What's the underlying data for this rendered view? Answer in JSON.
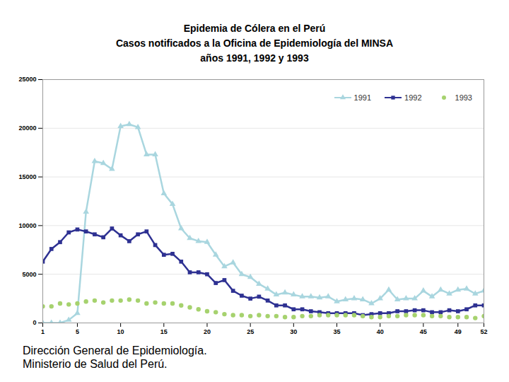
{
  "chart_data": {
    "type": "line",
    "title": [
      "Epidemia de Cólera en el Perú",
      "Casos notificados a la Oficina de Epidemiología del MINSA",
      "años 1991, 1992 y 1993"
    ],
    "caption": [
      "Dirección General de Epidemiología.",
      "Ministerio de Salud del Perú."
    ],
    "x": [
      1,
      2,
      3,
      4,
      5,
      6,
      7,
      8,
      9,
      10,
      11,
      12,
      13,
      14,
      15,
      16,
      17,
      18,
      19,
      20,
      21,
      22,
      23,
      24,
      25,
      26,
      27,
      28,
      29,
      30,
      31,
      32,
      33,
      34,
      35,
      36,
      37,
      38,
      39,
      40,
      41,
      42,
      43,
      44,
      45,
      46,
      47,
      48,
      49,
      50,
      51,
      52
    ],
    "series": [
      {
        "name": "1991",
        "color": "#a9d6df",
        "marker": "triangle",
        "line_style": "solid",
        "values": [
          0,
          0,
          0,
          300,
          1000,
          11400,
          16600,
          16400,
          15800,
          20200,
          20400,
          20100,
          17300,
          17300,
          13300,
          12200,
          9700,
          8700,
          8400,
          8300,
          7000,
          5800,
          6200,
          5000,
          4700,
          4000,
          3500,
          2900,
          3100,
          2900,
          2700,
          2700,
          2600,
          2700,
          2200,
          2400,
          2500,
          2400,
          2000,
          2500,
          3400,
          2400,
          2500,
          2500,
          3300,
          2700,
          3400,
          3000,
          3400,
          3500,
          3000,
          3300
        ]
      },
      {
        "name": "1992",
        "color": "#2e3192",
        "marker": "square",
        "line_style": "solid",
        "values": [
          6300,
          7600,
          8300,
          9300,
          9600,
          9400,
          9100,
          8800,
          9700,
          9000,
          8400,
          9100,
          9400,
          8000,
          7000,
          7100,
          6300,
          5200,
          5200,
          5000,
          4100,
          4400,
          3300,
          2800,
          2500,
          2700,
          2300,
          1800,
          1800,
          1400,
          1400,
          1200,
          1100,
          1000,
          1000,
          1000,
          1000,
          800,
          900,
          1000,
          1000,
          1200,
          1200,
          1300,
          1300,
          1100,
          1100,
          1300,
          1200,
          1400,
          1800,
          1800
        ]
      },
      {
        "name": "1993",
        "color": "#a6d26e",
        "marker": "circle",
        "line_style": "none",
        "values": [
          1700,
          1700,
          2000,
          1900,
          2000,
          2200,
          2300,
          2100,
          2300,
          2300,
          2400,
          2300,
          2000,
          2100,
          2000,
          2000,
          1800,
          1600,
          1400,
          1200,
          1100,
          900,
          800,
          800,
          700,
          800,
          700,
          700,
          600,
          600,
          700,
          700,
          800,
          800,
          800,
          800,
          800,
          700,
          600,
          600,
          700,
          700,
          800,
          800,
          800,
          700,
          700,
          600,
          600,
          600,
          500,
          700
        ]
      }
    ],
    "xlim": [
      1,
      52
    ],
    "xticks": [
      1,
      5,
      10,
      15,
      20,
      25,
      30,
      35,
      40,
      45,
      49,
      52
    ],
    "ylim": [
      0,
      25000
    ],
    "yticks": [
      0,
      5000,
      10000,
      15000,
      20000,
      25000
    ],
    "grid": true,
    "legend": "top-right"
  }
}
